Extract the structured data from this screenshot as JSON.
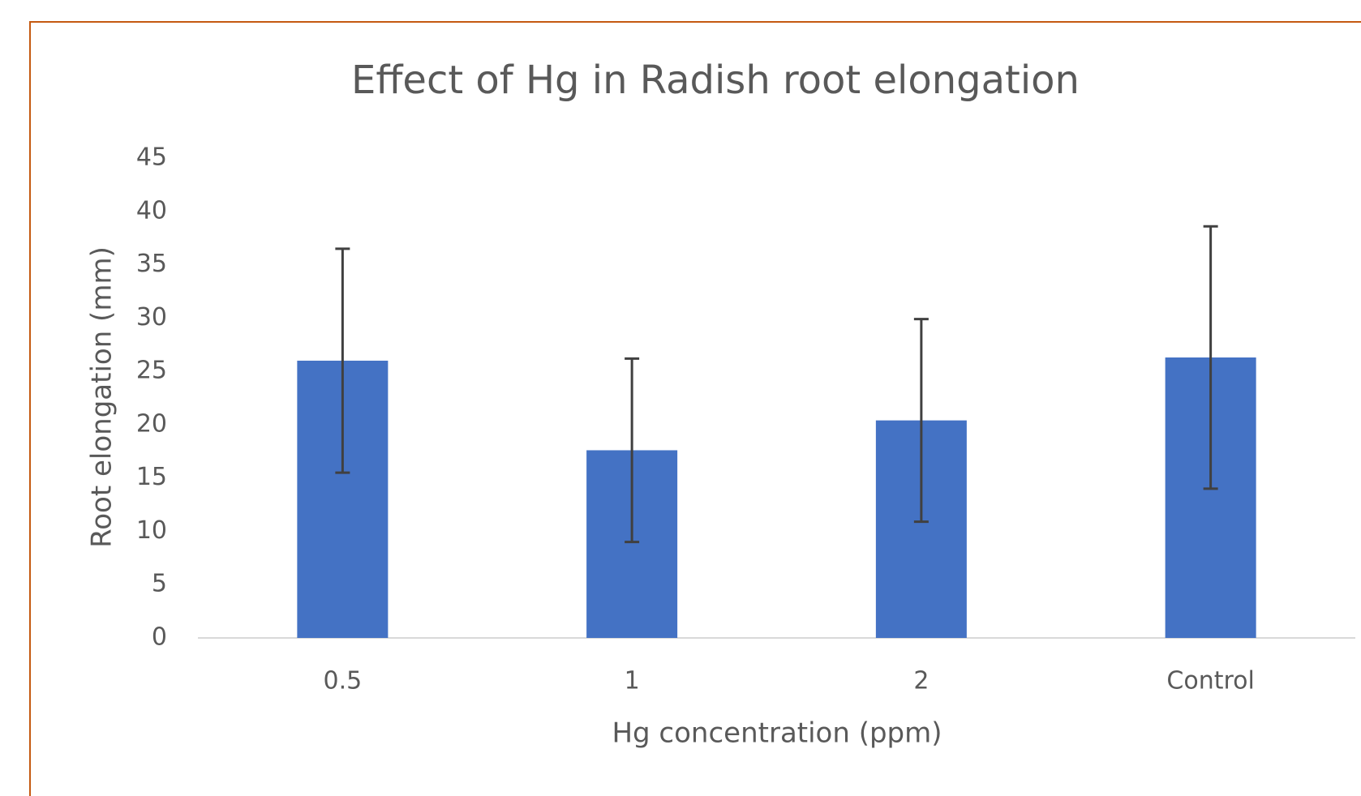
{
  "chart_data": {
    "type": "bar",
    "title": "Effect of Hg in Radish root elongation",
    "x_label": "Hg concentration (ppm)",
    "y_label": "Root elongation (mm)",
    "categories": [
      "0.5",
      "1",
      "2",
      "Control"
    ],
    "values": [
      26,
      17.6,
      20.4,
      26.3
    ],
    "errors": [
      10.5,
      8.6,
      9.5,
      12.3
    ],
    "color": "#4472c4",
    "error_color": "#404040",
    "ylim": [
      0,
      45
    ],
    "yticks": [
      0,
      5,
      10,
      15,
      20,
      25,
      30,
      35,
      40,
      45
    ],
    "grid": false
  }
}
